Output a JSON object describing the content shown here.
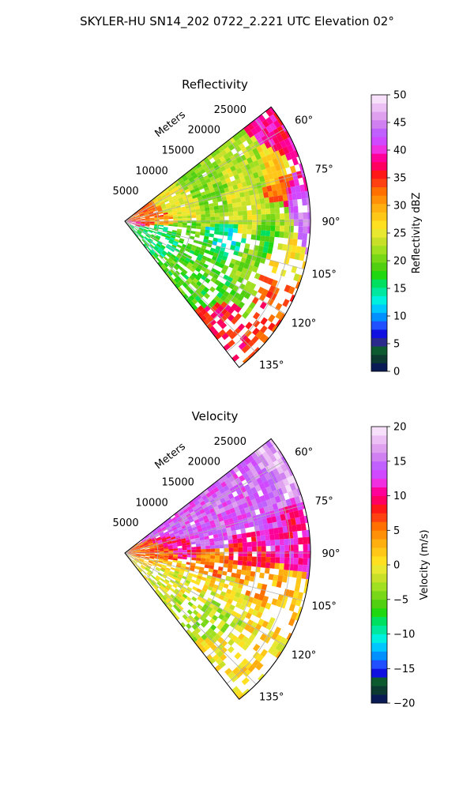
{
  "figure": {
    "suptitle": "SKYLER-HU  SN14_202  0722_2.221 UTC Elevation 02°"
  },
  "chart_data": [
    {
      "type": "heatmap",
      "projection": "polar-sector",
      "title": "Reflectivity",
      "radial_label": "Meters",
      "radial_ticks": [
        5000,
        10000,
        15000,
        20000,
        25000
      ],
      "radial_tick_labels": [
        "5000",
        "10000",
        "15000",
        "20000",
        "25000"
      ],
      "rmax": 28000,
      "azimuth_range_deg": [
        52,
        142
      ],
      "azimuth_ticks_deg": [
        60,
        75,
        90,
        105,
        120,
        135
      ],
      "azimuth_tick_labels": [
        "60°",
        "75°",
        "90°",
        "105°",
        "120°",
        "135°"
      ],
      "grid": true,
      "colorbar": {
        "label": "Reflectivity dBZ",
        "range": [
          0,
          50
        ],
        "ticks": [
          0,
          5,
          10,
          15,
          20,
          25,
          30,
          35,
          40,
          45,
          50
        ],
        "tick_labels": [
          "0",
          "5",
          "10",
          "15",
          "20",
          "25",
          "30",
          "35",
          "40",
          "45",
          "50"
        ],
        "colors": [
          "#0a1a55",
          "#0c3a30",
          "#0e5a30",
          "#2a2a8c",
          "#1010e0",
          "#2050ff",
          "#0090ff",
          "#00c8ff",
          "#00f0e0",
          "#00e8a0",
          "#00e060",
          "#20d810",
          "#50d010",
          "#78d818",
          "#a0e020",
          "#c8e028",
          "#e8e830",
          "#ffe020",
          "#ffc818",
          "#ffb010",
          "#ff9008",
          "#ff7000",
          "#ff4010",
          "#ff1818",
          "#ff0060",
          "#ff0098",
          "#f030e0",
          "#d048ff",
          "#c060ff",
          "#d080f0",
          "#e0a0f0",
          "#ecc0f4",
          "#f6e0fa"
        ]
      },
      "values_description": "Rasterized radar returns; dominant values 15–30 dBZ with cores 35–45 dBZ near the origin and far edge",
      "cells": [
        {
          "az": 60,
          "r": 26000,
          "value": 38
        },
        {
          "az": 70,
          "r": 24000,
          "value": 27
        },
        {
          "az": 78,
          "r": 24500,
          "value": 32
        },
        {
          "az": 82,
          "r": 25500,
          "value": 40
        },
        {
          "az": 86,
          "r": 26000,
          "value": 44
        },
        {
          "az": 90,
          "r": 24000,
          "value": 23
        },
        {
          "az": 88,
          "r": 5000,
          "value": 30
        },
        {
          "az": 95,
          "r": 1500,
          "value": 38
        },
        {
          "az": 92,
          "r": 3000,
          "value": 35
        },
        {
          "az": 84,
          "r": 4000,
          "value": 33
        },
        {
          "az": 80,
          "r": 9000,
          "value": 25
        },
        {
          "az": 84,
          "r": 14000,
          "value": 22
        },
        {
          "az": 86,
          "r": 19000,
          "value": 24
        },
        {
          "az": 100,
          "r": 9000,
          "value": 20
        },
        {
          "az": 104,
          "r": 6000,
          "value": 16
        },
        {
          "az": 100,
          "r": 15000,
          "value": 14
        },
        {
          "az": 110,
          "r": 13000,
          "value": 18
        },
        {
          "az": 112,
          "r": 20000,
          "value": 21
        },
        {
          "az": 114,
          "r": 24000,
          "value": 34
        },
        {
          "az": 118,
          "r": 21000,
          "value": 20
        },
        {
          "az": 122,
          "r": 15000,
          "value": 19
        },
        {
          "az": 128,
          "r": 18000,
          "value": 18
        },
        {
          "az": 134,
          "r": 20000,
          "value": 36
        },
        {
          "az": 96,
          "r": 22000,
          "value": 18
        },
        {
          "az": 104,
          "r": 24000,
          "value": 26
        },
        {
          "az": 66,
          "r": 21000,
          "value": 23
        },
        {
          "az": 74,
          "r": 14000,
          "value": 21
        },
        {
          "az": 76,
          "r": 18000,
          "value": 24
        }
      ]
    },
    {
      "type": "heatmap",
      "projection": "polar-sector",
      "title": "Velocity",
      "radial_label": "Meters",
      "radial_ticks": [
        5000,
        10000,
        15000,
        20000,
        25000
      ],
      "radial_tick_labels": [
        "5000",
        "10000",
        "15000",
        "20000",
        "25000"
      ],
      "rmax": 28000,
      "azimuth_range_deg": [
        52,
        142
      ],
      "azimuth_ticks_deg": [
        60,
        75,
        90,
        105,
        120,
        135
      ],
      "azimuth_tick_labels": [
        "60°",
        "75°",
        "90°",
        "105°",
        "120°",
        "135°"
      ],
      "grid": true,
      "colorbar": {
        "label": "Velocity (m/s)",
        "range": [
          -20,
          20
        ],
        "ticks": [
          -20,
          -15,
          -10,
          -5,
          0,
          5,
          10,
          15,
          20
        ],
        "tick_labels": [
          "−20",
          "−15",
          "−10",
          "−5",
          "0",
          "5",
          "10",
          "15",
          "20"
        ],
        "colors": [
          "#0a1a55",
          "#0c3a30",
          "#0e5a30",
          "#1010e0",
          "#2050ff",
          "#0090ff",
          "#00c8ff",
          "#00f0e0",
          "#00e8a0",
          "#00e060",
          "#20d810",
          "#50d010",
          "#78d818",
          "#a0e020",
          "#c8e028",
          "#e8e830",
          "#ffe020",
          "#ffc818",
          "#ffb010",
          "#ff9008",
          "#ff7000",
          "#ff4010",
          "#ff1818",
          "#ff0060",
          "#ff0098",
          "#f030e0",
          "#d048ff",
          "#c060ff",
          "#d080f0",
          "#e0a0f0",
          "#ecc0f4",
          "#f6e0fa"
        ]
      },
      "values_description": "Radial velocity field; ~14 m/s (magenta) north of 80°, ~10 m/s (red) near 88–95°, 3–5 m/s (orange) 95–110°, ~0 to −3 m/s (yellow/green) beyond 110°",
      "cells": [
        {
          "az": 60,
          "r": 26000,
          "value": 17
        },
        {
          "az": 64,
          "r": 24000,
          "value": 15
        },
        {
          "az": 70,
          "r": 20000,
          "value": 14
        },
        {
          "az": 76,
          "r": 12000,
          "value": 14
        },
        {
          "az": 80,
          "r": 22000,
          "value": 13
        },
        {
          "az": 84,
          "r": 25000,
          "value": 11
        },
        {
          "az": 88,
          "r": 9000,
          "value": 10
        },
        {
          "az": 90,
          "r": 20000,
          "value": 9
        },
        {
          "az": 94,
          "r": 6000,
          "value": 6
        },
        {
          "az": 98,
          "r": 12000,
          "value": 5
        },
        {
          "az": 102,
          "r": 20000,
          "value": 4
        },
        {
          "az": 106,
          "r": 24000,
          "value": 3
        },
        {
          "az": 104,
          "r": 7000,
          "value": 2
        },
        {
          "az": 110,
          "r": 12000,
          "value": 1
        },
        {
          "az": 114,
          "r": 18000,
          "value": 0
        },
        {
          "az": 118,
          "r": 23000,
          "value": 1
        },
        {
          "az": 122,
          "r": 14000,
          "value": -2
        },
        {
          "az": 128,
          "r": 18000,
          "value": -3
        },
        {
          "az": 134,
          "r": 20000,
          "value": 0
        },
        {
          "az": 116,
          "r": 9000,
          "value": -1
        }
      ]
    }
  ]
}
